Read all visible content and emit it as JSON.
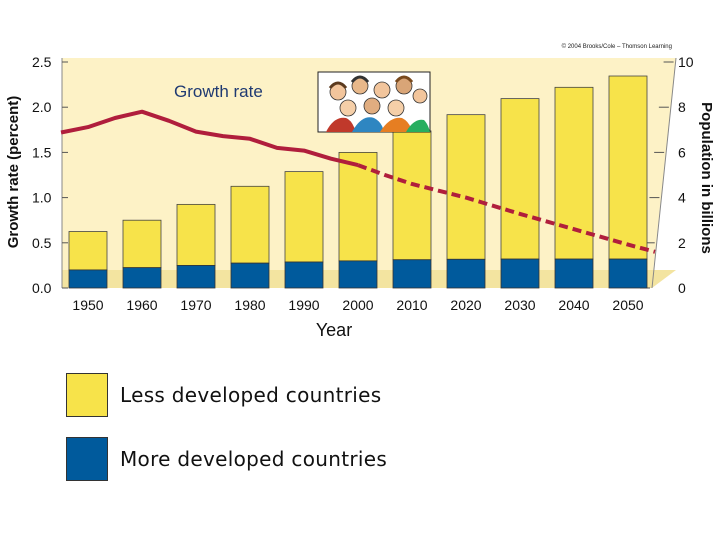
{
  "chart_data": {
    "type": "bar",
    "title": "",
    "credit": "© 2004 Brooks/Cole – Thomson Learning",
    "xlabel": "Year",
    "ylabel_left": "Growth rate (percent)",
    "ylabel_right": "Population in billions",
    "categories": [
      "1950",
      "1960",
      "1970",
      "1980",
      "1990",
      "2000",
      "2010",
      "2020",
      "2030",
      "2040",
      "2050"
    ],
    "yleft_ticks": [
      "0.0",
      "0.5",
      "1.0",
      "1.5",
      "2.0",
      "2.5"
    ],
    "yleft_range": [
      0,
      2.5
    ],
    "yright_ticks": [
      "0",
      "2",
      "4",
      "6",
      "8",
      "10"
    ],
    "yright_range": [
      0,
      10
    ],
    "stacked": true,
    "series": [
      {
        "name": "More developed countries",
        "axis": "right",
        "color": "#005a9c",
        "values": [
          0.8,
          0.9,
          1.0,
          1.1,
          1.15,
          1.2,
          1.25,
          1.27,
          1.28,
          1.28,
          1.28
        ]
      },
      {
        "name": "Less developed countries",
        "axis": "right",
        "color": "#f7e34a",
        "values": [
          1.7,
          2.1,
          2.7,
          3.4,
          4.0,
          4.8,
          5.7,
          6.4,
          7.1,
          7.6,
          8.1
        ]
      }
    ],
    "line": {
      "name": "Growth rate",
      "axis": "left",
      "color": "#b01e3c",
      "x": [
        1945,
        1950,
        1955,
        1960,
        1965,
        1970,
        1975,
        1980,
        1985,
        1990,
        1995,
        2000,
        2005,
        2010,
        2020,
        2030,
        2040,
        2050,
        2055
      ],
      "y": [
        1.72,
        1.78,
        1.88,
        1.95,
        1.85,
        1.73,
        1.68,
        1.65,
        1.55,
        1.52,
        1.43,
        1.36,
        1.25,
        1.15,
        1.0,
        0.82,
        0.65,
        0.48,
        0.4
      ],
      "projected_from": 2000
    },
    "annotation": "Growth rate",
    "legend": [
      {
        "label": "Less developed countries",
        "color": "#f7e34a"
      },
      {
        "label": "More developed countries",
        "color": "#005a9c"
      }
    ],
    "grid": false,
    "legend_position": "bottom-left"
  }
}
